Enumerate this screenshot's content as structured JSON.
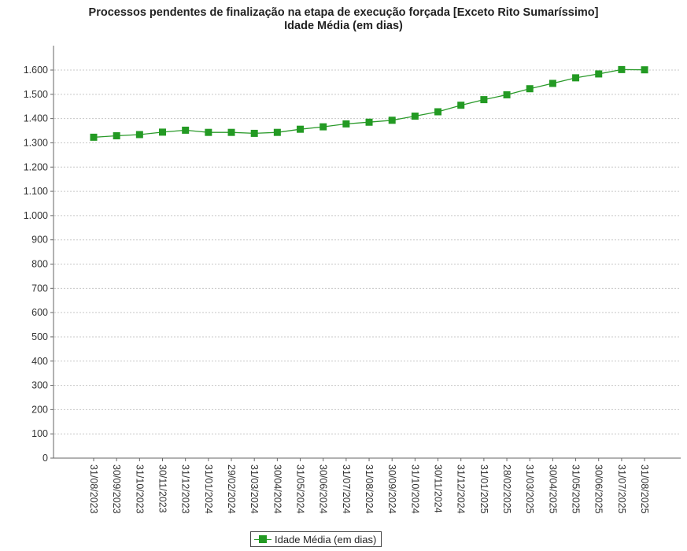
{
  "chart_data": {
    "type": "line",
    "title": "Processos pendentes de finalização na etapa de execução forçada [Exceto Rito Sumaríssimo]",
    "subtitle": "Idade Média (em dias)",
    "xlabel": "",
    "ylabel": "",
    "ylim": [
      0,
      1700
    ],
    "yticks": [
      0,
      100,
      200,
      300,
      400,
      500,
      600,
      700,
      800,
      900,
      1000,
      1100,
      1200,
      1300,
      1400,
      1500,
      1600
    ],
    "ytick_labels": [
      "0",
      "100",
      "200",
      "300",
      "400",
      "500",
      "600",
      "700",
      "800",
      "900",
      "1.000",
      "1.100",
      "1.200",
      "1.300",
      "1.400",
      "1.500",
      "1.600"
    ],
    "grid": true,
    "legend_position": "bottom-center",
    "categories": [
      "31/08/2023",
      "30/09/2023",
      "31/10/2023",
      "30/11/2023",
      "31/12/2023",
      "31/01/2024",
      "29/02/2024",
      "31/03/2024",
      "30/04/2024",
      "31/05/2024",
      "30/06/2024",
      "31/07/2024",
      "31/08/2024",
      "30/09/2024",
      "31/10/2024",
      "30/11/2024",
      "31/12/2024",
      "31/01/2025",
      "28/02/2025",
      "31/03/2025",
      "30/04/2025",
      "31/05/2025",
      "30/06/2025",
      "31/07/2025",
      "31/08/2025"
    ],
    "series": [
      {
        "name": "Idade Média (em dias)",
        "color": "#239a23",
        "marker": "square",
        "values": [
          1323,
          1329,
          1334,
          1344,
          1352,
          1343,
          1343,
          1339,
          1343,
          1356,
          1366,
          1378,
          1385,
          1393,
          1410,
          1428,
          1455,
          1478,
          1498,
          1523,
          1545,
          1568,
          1584,
          1602,
          1601
        ]
      }
    ]
  }
}
